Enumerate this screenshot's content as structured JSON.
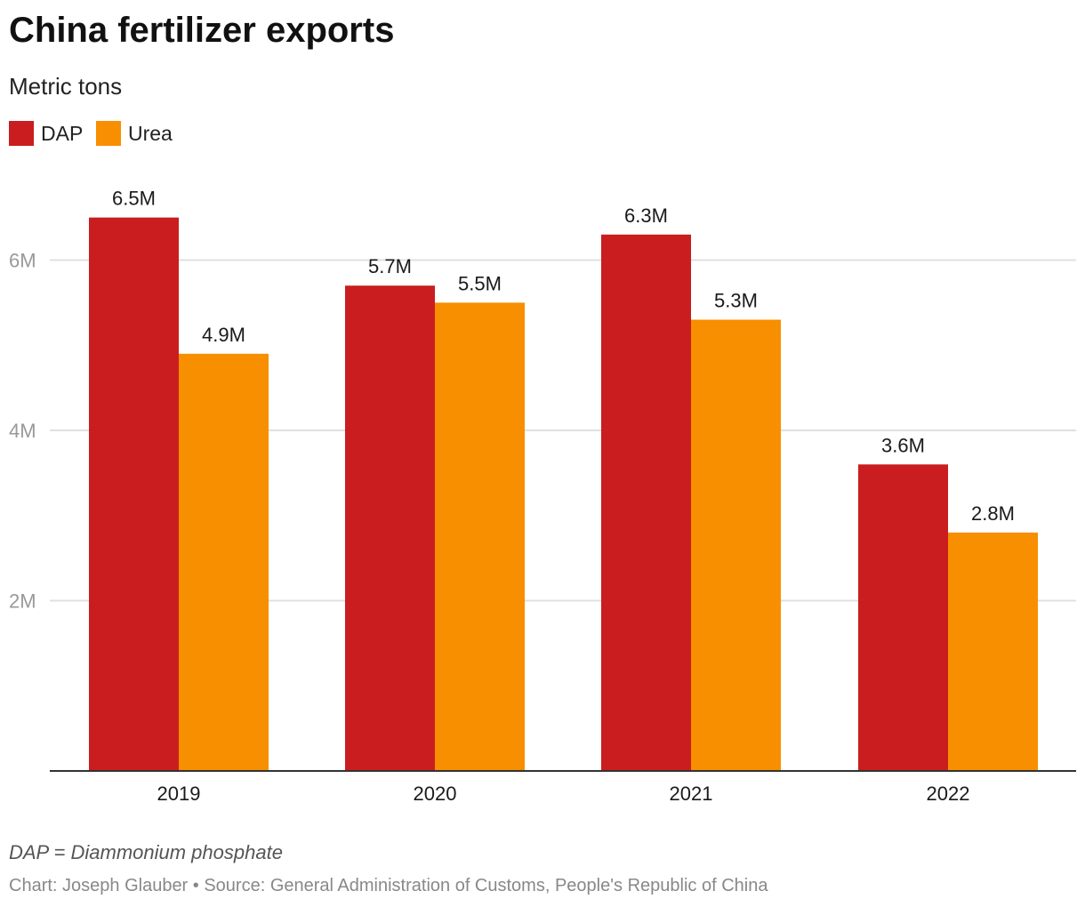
{
  "chart_data": {
    "type": "bar",
    "title": "China fertilizer exports",
    "subtitle": "Metric tons",
    "categories": [
      "2019",
      "2020",
      "2021",
      "2022"
    ],
    "series": [
      {
        "name": "DAP",
        "color": "#c91d1f",
        "values": [
          6.5,
          5.7,
          6.3,
          3.6
        ],
        "labels": [
          "6.5M",
          "5.7M",
          "6.3M",
          "3.6M"
        ]
      },
      {
        "name": "Urea",
        "color": "#f78f00",
        "values": [
          4.9,
          5.5,
          5.3,
          2.8
        ],
        "labels": [
          "4.9M",
          "5.5M",
          "5.3M",
          "2.8M"
        ]
      }
    ],
    "unit": "million metric tons",
    "yticks": [
      {
        "value": 2,
        "label": "2M"
      },
      {
        "value": 4,
        "label": "4M"
      },
      {
        "value": 6,
        "label": "6M"
      }
    ],
    "ylim": [
      0,
      6.5
    ],
    "grid": true,
    "legend": "top-left",
    "note": "DAP = Diammonium phosphate",
    "credit": "Chart: Joseph Glauber • Source: General Administration of Customs, People's Republic of China"
  }
}
